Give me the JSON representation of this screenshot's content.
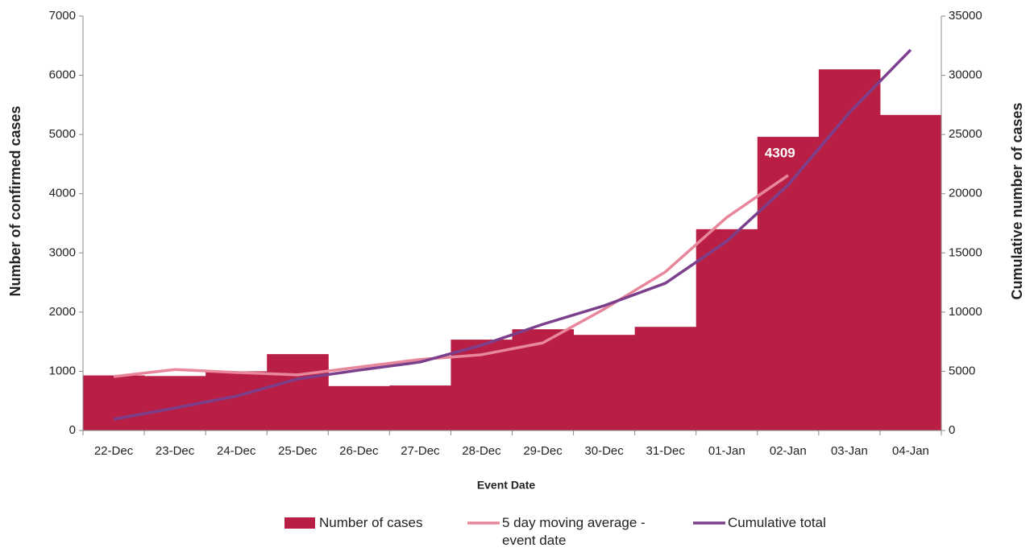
{
  "chart_data": {
    "type": "bar",
    "xlabel": "Event Date",
    "ylabel": "Number of confirmed cases",
    "y2label": "Cumulative number of cases",
    "categories": [
      "22-Dec",
      "23-Dec",
      "24-Dec",
      "25-Dec",
      "26-Dec",
      "27-Dec",
      "28-Dec",
      "29-Dec",
      "30-Dec",
      "31-Dec",
      "01-Jan",
      "02-Jan",
      "03-Jan",
      "04-Jan"
    ],
    "series": [
      {
        "name": "Number of cases",
        "type": "bar",
        "color": "#b91f45",
        "axis": "y",
        "values": [
          930,
          920,
          1000,
          1290,
          750,
          760,
          1535,
          1710,
          1615,
          1750,
          3400,
          4960,
          6100,
          5330
        ]
      },
      {
        "name": "5 day moving average - event date",
        "type": "line",
        "color": "#e8879b",
        "axis": "y",
        "values": [
          910,
          1030,
          980,
          940,
          1070,
          1200,
          1280,
          1480,
          2050,
          2680,
          3600,
          4309,
          null,
          null
        ]
      },
      {
        "name": "Cumulative total",
        "type": "line",
        "color": "#7b3f8c",
        "axis": "y2",
        "values": [
          950,
          1900,
          2900,
          4350,
          5100,
          5780,
          7200,
          8970,
          10540,
          12440,
          15980,
          20730,
          26850,
          32150
        ]
      }
    ],
    "ylim": [
      0,
      7000
    ],
    "yticks": [
      0,
      1000,
      2000,
      3000,
      4000,
      5000,
      6000,
      7000
    ],
    "y2lim": [
      0,
      35000
    ],
    "y2ticks": [
      0,
      5000,
      10000,
      15000,
      20000,
      25000,
      30000,
      35000
    ],
    "grid": false,
    "legend": "bottom"
  }
}
